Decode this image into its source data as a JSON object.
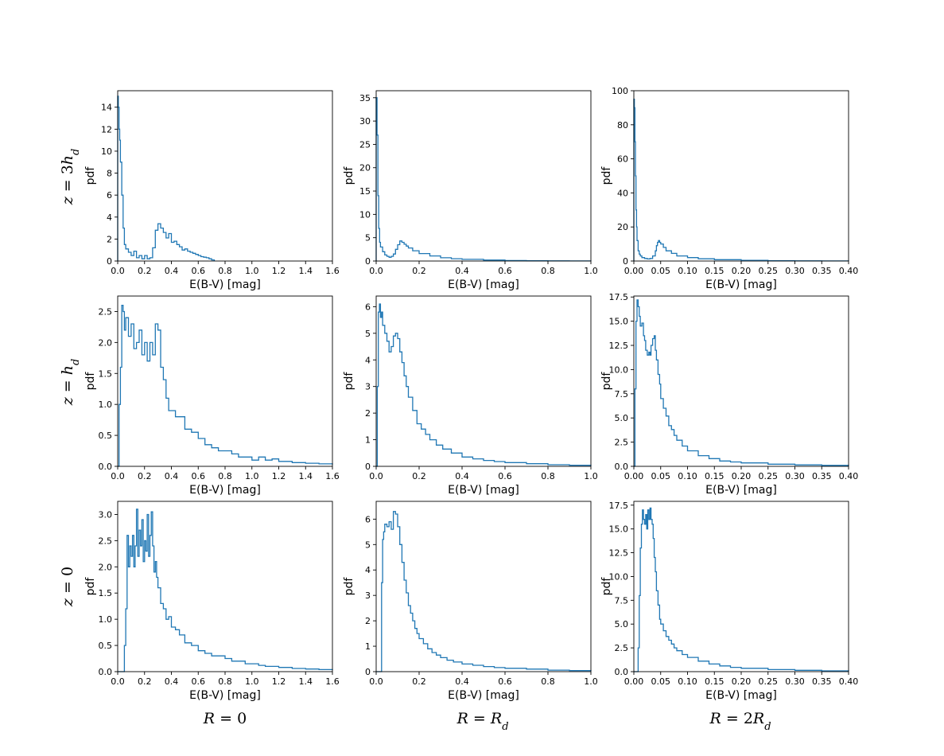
{
  "figure": {
    "row_labels": [
      "z = 3h_d",
      "z = h_d",
      "z = 0"
    ],
    "col_labels": [
      "R = 0",
      "R = R_d",
      "R = 2R_d"
    ],
    "series_color": "#1f77b4"
  },
  "chart_data": [
    {
      "type": "histogram-step",
      "row": 0,
      "col": 0,
      "xlabel": "E(B-V) [mag]",
      "ylabel": "pdf",
      "xlim": [
        0,
        1.6
      ],
      "ylim": [
        0,
        15.5
      ],
      "xticks": [
        "0.0",
        "0.2",
        "0.4",
        "0.6",
        "0.8",
        "1.0",
        "1.2",
        "1.4",
        "1.6"
      ],
      "yticks": [
        "0",
        "2",
        "4",
        "6",
        "8",
        "10",
        "12",
        "14"
      ],
      "x": [
        0,
        0.005,
        0.01,
        0.015,
        0.02,
        0.03,
        0.04,
        0.05,
        0.06,
        0.08,
        0.1,
        0.12,
        0.14,
        0.16,
        0.18,
        0.2,
        0.22,
        0.24,
        0.26,
        0.28,
        0.3,
        0.32,
        0.34,
        0.36,
        0.38,
        0.4,
        0.42,
        0.44,
        0.46,
        0.48,
        0.5,
        0.52,
        0.54,
        0.56,
        0.58,
        0.6,
        0.62,
        0.64,
        0.66,
        0.68,
        0.7,
        0.72
      ],
      "values": [
        15,
        14,
        12,
        11,
        9,
        6,
        3,
        1.5,
        1.1,
        0.8,
        0.5,
        0.9,
        0.3,
        0.5,
        0.2,
        0.5,
        0.2,
        0.3,
        1.2,
        2.8,
        3.4,
        3.0,
        2.6,
        2.1,
        2.5,
        1.7,
        1.8,
        1.5,
        1.3,
        1.0,
        1.1,
        0.9,
        0.8,
        0.7,
        0.6,
        0.5,
        0.4,
        0.35,
        0.3,
        0.2,
        0.1,
        0
      ]
    },
    {
      "type": "histogram-step",
      "row": 0,
      "col": 1,
      "xlabel": "E(B-V) [mag]",
      "ylabel": "pdf",
      "xlim": [
        0,
        1.0
      ],
      "ylim": [
        0,
        36.5
      ],
      "xticks": [
        "0.0",
        "0.2",
        "0.4",
        "0.6",
        "0.8",
        "1.0"
      ],
      "yticks": [
        "0",
        "5",
        "10",
        "15",
        "20",
        "25",
        "30",
        "35"
      ],
      "x": [
        0,
        0.004,
        0.008,
        0.012,
        0.016,
        0.02,
        0.03,
        0.04,
        0.05,
        0.06,
        0.07,
        0.08,
        0.09,
        0.1,
        0.11,
        0.12,
        0.13,
        0.14,
        0.15,
        0.17,
        0.2,
        0.25,
        0.3,
        0.35,
        0.4,
        0.5,
        0.6,
        0.7,
        0.8,
        0.9,
        1.0
      ],
      "values": [
        35,
        27,
        14,
        7,
        4,
        3,
        2,
        1.3,
        1.0,
        0.8,
        1.0,
        1.5,
        2.5,
        3.5,
        4.3,
        4.0,
        3.6,
        3.2,
        2.8,
        2.2,
        1.6,
        1.1,
        0.7,
        0.5,
        0.35,
        0.2,
        0.1,
        0.05,
        0.03,
        0.02,
        0
      ]
    },
    {
      "type": "histogram-step",
      "row": 0,
      "col": 2,
      "xlabel": "E(B-V) [mag]",
      "ylabel": "pdf",
      "xlim": [
        0,
        0.4
      ],
      "ylim": [
        0,
        100
      ],
      "xticks": [
        "0.00",
        "0.05",
        "0.10",
        "0.15",
        "0.20",
        "0.25",
        "0.30",
        "0.35",
        "0.40"
      ],
      "yticks": [
        "0",
        "20",
        "40",
        "60",
        "80",
        "100"
      ],
      "x": [
        0,
        0.001,
        0.002,
        0.003,
        0.004,
        0.005,
        0.006,
        0.008,
        0.01,
        0.012,
        0.015,
        0.02,
        0.025,
        0.03,
        0.035,
        0.04,
        0.042,
        0.044,
        0.046,
        0.048,
        0.05,
        0.055,
        0.06,
        0.07,
        0.08,
        0.1,
        0.12,
        0.15,
        0.2,
        0.25,
        0.3,
        0.35,
        0.4
      ],
      "values": [
        95,
        90,
        70,
        50,
        30,
        20,
        12,
        6,
        4,
        3,
        2,
        1.5,
        1.2,
        1.5,
        3,
        6,
        9,
        11,
        12,
        11,
        10,
        8,
        6,
        4.5,
        3,
        2,
        1.3,
        0.8,
        0.4,
        0.2,
        0.1,
        0.05,
        0
      ]
    },
    {
      "type": "histogram-step",
      "row": 1,
      "col": 0,
      "xlabel": "E(B-V) [mag]",
      "ylabel": "pdf",
      "xlim": [
        0,
        1.6
      ],
      "ylim": [
        0,
        2.75
      ],
      "xticks": [
        "0.0",
        "0.2",
        "0.4",
        "0.6",
        "0.8",
        "1.0",
        "1.2",
        "1.4",
        "1.6"
      ],
      "yticks": [
        "0.0",
        "0.5",
        "1.0",
        "1.5",
        "2.0",
        "2.5"
      ],
      "x": [
        0,
        0.01,
        0.02,
        0.03,
        0.04,
        0.05,
        0.06,
        0.08,
        0.1,
        0.12,
        0.14,
        0.16,
        0.18,
        0.2,
        0.22,
        0.24,
        0.26,
        0.28,
        0.3,
        0.32,
        0.34,
        0.36,
        0.38,
        0.4,
        0.43,
        0.46,
        0.5,
        0.55,
        0.6,
        0.65,
        0.7,
        0.75,
        0.8,
        0.85,
        0.9,
        0.95,
        1.0,
        1.05,
        1.1,
        1.15,
        1.2,
        1.3,
        1.4,
        1.5,
        1.6
      ],
      "values": [
        0,
        1.0,
        1.6,
        2.6,
        2.5,
        2.2,
        2.4,
        2.1,
        2.3,
        1.9,
        2.0,
        2.2,
        1.8,
        2.0,
        1.7,
        2.0,
        1.8,
        2.3,
        2.2,
        1.6,
        1.4,
        1.1,
        0.9,
        0.9,
        0.8,
        0.8,
        0.6,
        0.55,
        0.45,
        0.35,
        0.3,
        0.25,
        0.25,
        0.2,
        0.15,
        0.15,
        0.1,
        0.15,
        0.1,
        0.12,
        0.08,
        0.06,
        0.05,
        0.04,
        0.03
      ]
    },
    {
      "type": "histogram-step",
      "row": 1,
      "col": 1,
      "xlabel": "E(B-V) [mag]",
      "ylabel": "pdf",
      "xlim": [
        0,
        1.0
      ],
      "ylim": [
        0,
        6.4
      ],
      "xticks": [
        "0.0",
        "0.2",
        "0.4",
        "0.6",
        "0.8",
        "1.0"
      ],
      "yticks": [
        "0",
        "1",
        "2",
        "3",
        "4",
        "5",
        "6"
      ],
      "x": [
        0,
        0.005,
        0.01,
        0.015,
        0.02,
        0.025,
        0.03,
        0.04,
        0.05,
        0.06,
        0.07,
        0.08,
        0.09,
        0.1,
        0.11,
        0.12,
        0.13,
        0.14,
        0.15,
        0.17,
        0.19,
        0.21,
        0.23,
        0.25,
        0.28,
        0.31,
        0.35,
        0.4,
        0.45,
        0.5,
        0.55,
        0.6,
        0.7,
        0.8,
        0.9,
        1.0
      ],
      "values": [
        0,
        3.0,
        5.8,
        6.1,
        5.6,
        5.8,
        5.3,
        5.0,
        4.7,
        4.3,
        4.5,
        4.9,
        5.0,
        4.8,
        4.3,
        3.9,
        3.4,
        3.0,
        2.6,
        2.1,
        1.6,
        1.4,
        1.2,
        1.0,
        0.8,
        0.65,
        0.5,
        0.35,
        0.28,
        0.22,
        0.18,
        0.14,
        0.1,
        0.06,
        0.04,
        0.02
      ]
    },
    {
      "type": "histogram-step",
      "row": 1,
      "col": 2,
      "xlabel": "E(B-V) [mag]",
      "ylabel": "pdf",
      "xlim": [
        0,
        0.4
      ],
      "ylim": [
        0,
        17.6
      ],
      "xticks": [
        "0.00",
        "0.05",
        "0.10",
        "0.15",
        "0.20",
        "0.25",
        "0.30",
        "0.35",
        "0.40"
      ],
      "yticks": [
        "0.0",
        "2.5",
        "5.0",
        "7.5",
        "10.0",
        "12.5",
        "15.0",
        "17.5"
      ],
      "x": [
        0,
        0.002,
        0.004,
        0.006,
        0.008,
        0.01,
        0.012,
        0.015,
        0.018,
        0.02,
        0.022,
        0.025,
        0.028,
        0.03,
        0.032,
        0.035,
        0.038,
        0.04,
        0.042,
        0.045,
        0.048,
        0.05,
        0.055,
        0.06,
        0.065,
        0.07,
        0.075,
        0.08,
        0.09,
        0.1,
        0.12,
        0.14,
        0.16,
        0.18,
        0.2,
        0.25,
        0.3,
        0.35,
        0.4
      ],
      "values": [
        0,
        8,
        15,
        17.2,
        16.5,
        15.5,
        14.5,
        14.8,
        13.5,
        13.0,
        12.0,
        11.5,
        11.8,
        11.5,
        12.5,
        13.2,
        13.5,
        12.0,
        11.0,
        9.5,
        8.5,
        7.0,
        6.0,
        5.2,
        4.2,
        3.8,
        3.2,
        2.7,
        2.1,
        1.6,
        1.1,
        0.8,
        0.55,
        0.45,
        0.35,
        0.22,
        0.15,
        0.1,
        0.05
      ]
    },
    {
      "type": "histogram-step",
      "row": 2,
      "col": 0,
      "xlabel": "E(B-V) [mag]",
      "ylabel": "pdf",
      "xlim": [
        0,
        1.6
      ],
      "ylim": [
        0,
        3.25
      ],
      "xticks": [
        "0.0",
        "0.2",
        "0.4",
        "0.6",
        "0.8",
        "1.0",
        "1.2",
        "1.4",
        "1.6"
      ],
      "yticks": [
        "0.0",
        "0.5",
        "1.0",
        "1.5",
        "2.0",
        "2.5",
        "3.0"
      ],
      "x": [
        0,
        0.04,
        0.05,
        0.06,
        0.07,
        0.08,
        0.09,
        0.1,
        0.11,
        0.12,
        0.13,
        0.14,
        0.15,
        0.16,
        0.17,
        0.18,
        0.19,
        0.2,
        0.21,
        0.22,
        0.23,
        0.24,
        0.25,
        0.26,
        0.27,
        0.28,
        0.29,
        0.3,
        0.32,
        0.34,
        0.36,
        0.38,
        0.4,
        0.43,
        0.46,
        0.5,
        0.55,
        0.6,
        0.65,
        0.7,
        0.75,
        0.8,
        0.85,
        0.9,
        0.95,
        1.0,
        1.05,
        1.1,
        1.15,
        1.2,
        1.3,
        1.4,
        1.5,
        1.6
      ],
      "values": [
        0,
        0,
        0.5,
        1.2,
        2.6,
        2.0,
        2.4,
        2.2,
        2.6,
        2.0,
        2.4,
        3.1,
        2.2,
        2.7,
        2.4,
        2.9,
        2.1,
        2.5,
        2.3,
        3.0,
        2.2,
        2.6,
        3.05,
        2.4,
        1.9,
        2.1,
        1.8,
        1.6,
        1.3,
        1.2,
        1.0,
        1.05,
        0.85,
        0.8,
        0.7,
        0.55,
        0.5,
        0.4,
        0.35,
        0.3,
        0.3,
        0.25,
        0.2,
        0.2,
        0.15,
        0.15,
        0.12,
        0.1,
        0.1,
        0.08,
        0.06,
        0.05,
        0.04,
        0.03
      ]
    },
    {
      "type": "histogram-step",
      "row": 2,
      "col": 1,
      "xlabel": "E(B-V) [mag]",
      "ylabel": "pdf",
      "xlim": [
        0,
        1.0
      ],
      "ylim": [
        0,
        6.7
      ],
      "xticks": [
        "0.0",
        "0.2",
        "0.4",
        "0.6",
        "0.8",
        "1.0"
      ],
      "yticks": [
        "0",
        "1",
        "2",
        "3",
        "4",
        "5",
        "6"
      ],
      "x": [
        0,
        0.02,
        0.025,
        0.03,
        0.035,
        0.04,
        0.05,
        0.06,
        0.07,
        0.08,
        0.09,
        0.1,
        0.11,
        0.12,
        0.13,
        0.14,
        0.15,
        0.16,
        0.17,
        0.18,
        0.19,
        0.2,
        0.22,
        0.24,
        0.26,
        0.28,
        0.3,
        0.33,
        0.36,
        0.4,
        0.45,
        0.5,
        0.55,
        0.6,
        0.7,
        0.8,
        0.9,
        1.0
      ],
      "values": [
        0,
        0,
        3.5,
        5.2,
        5.5,
        5.8,
        5.7,
        5.9,
        5.6,
        6.3,
        6.2,
        5.7,
        5.0,
        4.3,
        3.6,
        3.1,
        2.6,
        2.3,
        2.0,
        1.7,
        1.5,
        1.3,
        1.1,
        0.9,
        0.75,
        0.65,
        0.55,
        0.45,
        0.38,
        0.3,
        0.25,
        0.2,
        0.16,
        0.13,
        0.1,
        0.06,
        0.04,
        0.02
      ]
    },
    {
      "type": "histogram-step",
      "row": 2,
      "col": 2,
      "xlabel": "E(B-V) [mag]",
      "ylabel": "pdf",
      "xlim": [
        0,
        0.4
      ],
      "ylim": [
        0,
        17.9
      ],
      "xticks": [
        "0.00",
        "0.05",
        "0.10",
        "0.15",
        "0.20",
        "0.25",
        "0.30",
        "0.35",
        "0.40"
      ],
      "yticks": [
        "0.0",
        "2.5",
        "5.0",
        "7.5",
        "10.0",
        "12.5",
        "15.0",
        "17.5"
      ],
      "x": [
        0,
        0.007,
        0.008,
        0.01,
        0.012,
        0.014,
        0.016,
        0.018,
        0.02,
        0.022,
        0.024,
        0.026,
        0.028,
        0.03,
        0.032,
        0.034,
        0.036,
        0.038,
        0.04,
        0.042,
        0.045,
        0.048,
        0.05,
        0.055,
        0.06,
        0.065,
        0.07,
        0.075,
        0.08,
        0.09,
        0.1,
        0.12,
        0.14,
        0.16,
        0.18,
        0.2,
        0.25,
        0.3,
        0.35,
        0.4
      ],
      "values": [
        0,
        0,
        2.5,
        8,
        13,
        15.5,
        17,
        16,
        15.5,
        16.5,
        15.0,
        17.0,
        16.0,
        17.2,
        16.0,
        15.5,
        14.0,
        12.0,
        10.5,
        8.5,
        7.0,
        5.5,
        5.0,
        4.3,
        3.7,
        3.3,
        2.9,
        2.5,
        2.2,
        1.8,
        1.5,
        1.1,
        0.8,
        0.6,
        0.45,
        0.35,
        0.22,
        0.14,
        0.08,
        0.04
      ]
    }
  ]
}
